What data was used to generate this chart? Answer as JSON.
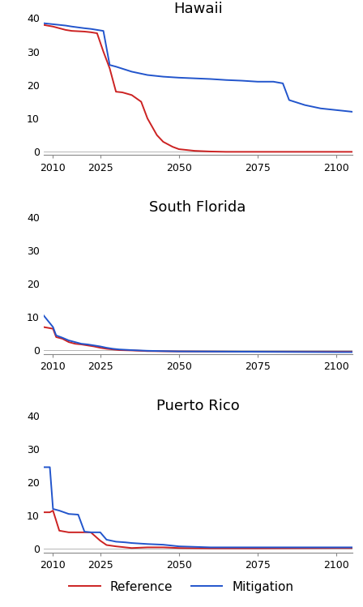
{
  "titles": [
    "Hawaii",
    "South Florida",
    "Puerto Rico"
  ],
  "reference_color": "#cc2222",
  "mitigation_color": "#2255cc",
  "line_width": 1.4,
  "ylim": [
    -1,
    40
  ],
  "yticks": [
    0,
    10,
    20,
    30,
    40
  ],
  "xlim": [
    2007,
    2105
  ],
  "xticks": [
    2010,
    2025,
    2050,
    2075,
    2100
  ],
  "hawaii_ref": {
    "x": [
      2007,
      2010,
      2014,
      2016,
      2020,
      2022,
      2024,
      2026,
      2028,
      2030,
      2032,
      2035,
      2038,
      2040,
      2043,
      2045,
      2048,
      2050,
      2055,
      2060,
      2065,
      2070,
      2075,
      2080,
      2100,
      2105
    ],
    "y": [
      38.0,
      37.5,
      36.5,
      36.2,
      36.0,
      35.8,
      35.5,
      30.0,
      25.0,
      18.0,
      17.8,
      17.0,
      15.0,
      10.0,
      5.0,
      3.0,
      1.5,
      0.8,
      0.3,
      0.1,
      0.0,
      0.0,
      0.0,
      0.0,
      0.0,
      0.0
    ]
  },
  "hawaii_mit": {
    "x": [
      2007,
      2010,
      2014,
      2016,
      2020,
      2022,
      2024,
      2026,
      2028,
      2030,
      2035,
      2040,
      2045,
      2050,
      2055,
      2060,
      2065,
      2070,
      2075,
      2080,
      2083,
      2085,
      2090,
      2095,
      2100,
      2105
    ],
    "y": [
      38.5,
      38.2,
      37.8,
      37.5,
      37.0,
      36.8,
      36.5,
      36.2,
      26.0,
      25.5,
      24.0,
      23.0,
      22.5,
      22.2,
      22.0,
      21.8,
      21.5,
      21.3,
      21.0,
      21.0,
      20.5,
      15.5,
      14.0,
      13.0,
      12.5,
      12.0
    ]
  },
  "sflorida_ref": {
    "x": [
      2007,
      2010,
      2011,
      2013,
      2015,
      2017,
      2019,
      2021,
      2023,
      2025,
      2027,
      2029,
      2031,
      2035,
      2040,
      2050,
      2075,
      2100,
      2105
    ],
    "y": [
      7.0,
      6.5,
      4.0,
      3.5,
      2.5,
      2.0,
      1.8,
      1.5,
      1.2,
      0.8,
      0.5,
      0.3,
      0.1,
      0.0,
      -0.2,
      -0.3,
      -0.4,
      -0.4,
      -0.4
    ]
  },
  "sflorida_mit": {
    "x": [
      2007,
      2010,
      2011,
      2013,
      2015,
      2017,
      2019,
      2021,
      2023,
      2025,
      2027,
      2029,
      2031,
      2035,
      2040,
      2050,
      2075,
      2100,
      2105
    ],
    "y": [
      10.5,
      7.0,
      4.5,
      3.8,
      3.0,
      2.5,
      2.0,
      1.8,
      1.5,
      1.2,
      0.8,
      0.5,
      0.3,
      0.1,
      -0.1,
      -0.3,
      -0.4,
      -0.5,
      -0.5
    ]
  },
  "puertorico_ref": {
    "x": [
      2007,
      2009,
      2010,
      2012,
      2015,
      2018,
      2020,
      2022,
      2025,
      2027,
      2030,
      2033,
      2035,
      2040,
      2045,
      2050,
      2060,
      2075,
      2100,
      2105
    ],
    "y": [
      11.0,
      11.0,
      11.5,
      5.5,
      5.0,
      5.0,
      5.0,
      5.0,
      2.5,
      1.2,
      0.8,
      0.5,
      0.3,
      0.5,
      0.5,
      0.3,
      0.2,
      0.2,
      0.3,
      0.3
    ]
  },
  "puertorico_mit": {
    "x": [
      2007,
      2009,
      2010,
      2012,
      2015,
      2018,
      2020,
      2022,
      2025,
      2027,
      2030,
      2033,
      2035,
      2040,
      2045,
      2050,
      2060,
      2075,
      2100,
      2105
    ],
    "y": [
      24.5,
      24.5,
      12.0,
      11.5,
      10.5,
      10.3,
      5.2,
      5.0,
      5.0,
      2.8,
      2.2,
      2.0,
      1.8,
      1.5,
      1.3,
      0.8,
      0.5,
      0.5,
      0.5,
      0.5
    ]
  },
  "legend_labels": [
    "Reference",
    "Mitigation"
  ],
  "background_color": "#ffffff",
  "title_fontsize": 13,
  "tick_fontsize": 9,
  "legend_fontsize": 11
}
